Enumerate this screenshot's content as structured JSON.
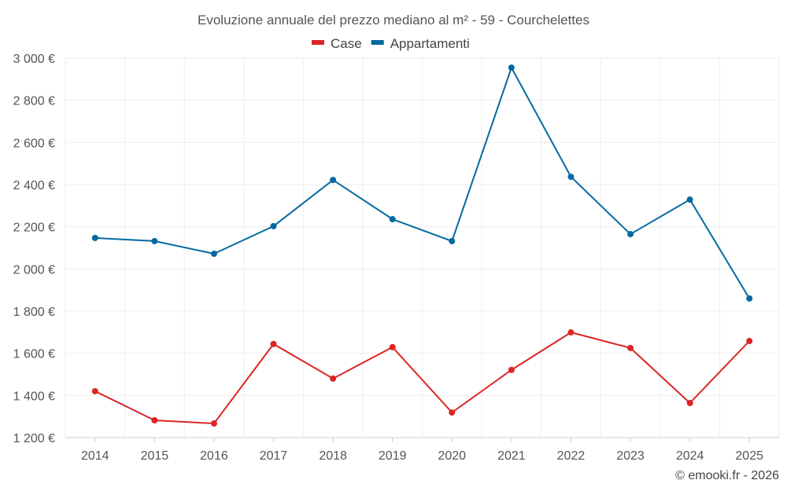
{
  "chart_data": {
    "type": "line",
    "title": "Evoluzione annuale del prezzo mediano al m² - 59 - Courchelettes",
    "xlabel": "",
    "ylabel": "",
    "categories": [
      "2014",
      "2015",
      "2016",
      "2017",
      "2018",
      "2019",
      "2020",
      "2021",
      "2022",
      "2023",
      "2024",
      "2025"
    ],
    "ylim": [
      1200,
      3000
    ],
    "yticks": [
      1200,
      1400,
      1600,
      1800,
      2000,
      2200,
      2400,
      2600,
      2800,
      3000
    ],
    "ytick_labels": [
      "1 200 €",
      "1 400 €",
      "1 600 €",
      "1 800 €",
      "2 000 €",
      "2 200 €",
      "2 400 €",
      "2 600 €",
      "2 800 €",
      "3 000 €"
    ],
    "grid": true,
    "legend_position": "top-center",
    "series": [
      {
        "name": "Case",
        "color": "#dc2626",
        "values": [
          1420,
          1282,
          1267,
          1644,
          1480,
          1629,
          1319,
          1521,
          1699,
          1625,
          1364,
          1658
        ]
      },
      {
        "name": "Appartamenti",
        "color": "#0369a1",
        "values": [
          2147,
          2132,
          2072,
          2203,
          2422,
          2236,
          2132,
          2955,
          2437,
          2165,
          2329,
          1860
        ]
      }
    ],
    "credit": "© emooki.fr - 2026"
  }
}
